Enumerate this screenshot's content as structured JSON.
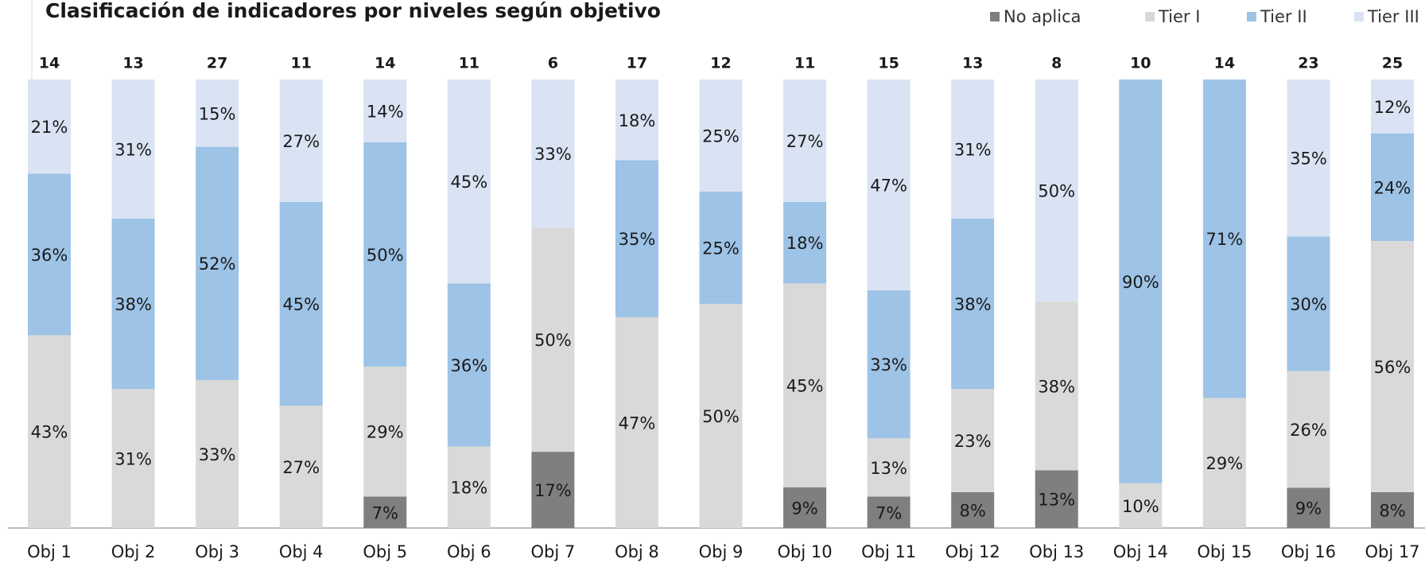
{
  "chart_data": {
    "type": "stacked_bar_100",
    "title": "Clasificación de indicadores por niveles según objetivo",
    "categories": [
      "Obj 1",
      "Obj 2",
      "Obj 3",
      "Obj 4",
      "Obj 5",
      "Obj 6",
      "Obj 7",
      "Obj 8",
      "Obj 9",
      "Obj 10",
      "Obj 11",
      "Obj 12",
      "Obj 13",
      "Obj 14",
      "Obj 15",
      "Obj 16",
      "Obj 17"
    ],
    "totals": [
      14,
      13,
      27,
      11,
      14,
      11,
      6,
      17,
      12,
      11,
      15,
      13,
      8,
      10,
      14,
      23,
      25
    ],
    "series": [
      {
        "name": "No aplica",
        "color": "#7f7f7f",
        "values": [
          0,
          0,
          0,
          0,
          7,
          0,
          17,
          0,
          0,
          9,
          7,
          8,
          13,
          0,
          0,
          9,
          8
        ],
        "value_labels": [
          null,
          null,
          null,
          null,
          "7%",
          null,
          "17%",
          null,
          null,
          "9%",
          "7%",
          "8%",
          "13%",
          null,
          null,
          "9%",
          "8%"
        ]
      },
      {
        "name": "Tier I",
        "color": "#d9d9d9",
        "values": [
          43,
          31,
          33,
          27,
          29,
          18,
          50,
          47,
          50,
          45,
          13,
          23,
          38,
          10,
          29,
          26,
          56
        ],
        "value_labels": [
          "43%",
          "31%",
          "33%",
          "27%",
          "29%",
          "18%",
          "50%",
          "47%",
          "50%",
          "45%",
          "13%",
          "23%",
          "38%",
          "10%",
          "29%",
          "26%",
          "56%"
        ]
      },
      {
        "name": "Tier II",
        "color": "#9dc3e6",
        "values": [
          36,
          38,
          52,
          45,
          50,
          36,
          0,
          35,
          25,
          18,
          33,
          38,
          0,
          90,
          71,
          30,
          24
        ],
        "value_labels": [
          "36%",
          "38%",
          "52%",
          "45%",
          "50%",
          "36%",
          null,
          "35%",
          "25%",
          "18%",
          "33%",
          "38%",
          null,
          "90%",
          "71%",
          "30%",
          "24%"
        ]
      },
      {
        "name": "Tier III",
        "color": "#dae3f3",
        "values": [
          21,
          31,
          15,
          27,
          14,
          45,
          33,
          18,
          25,
          27,
          47,
          31,
          50,
          0,
          0,
          35,
          12
        ],
        "value_labels": [
          "21%",
          "31%",
          "15%",
          "27%",
          "14%",
          "45%",
          "33%",
          "18%",
          "25%",
          "27%",
          "47%",
          "31%",
          "50%",
          null,
          null,
          "35%",
          "12%"
        ]
      }
    ],
    "legend": "top-right"
  }
}
